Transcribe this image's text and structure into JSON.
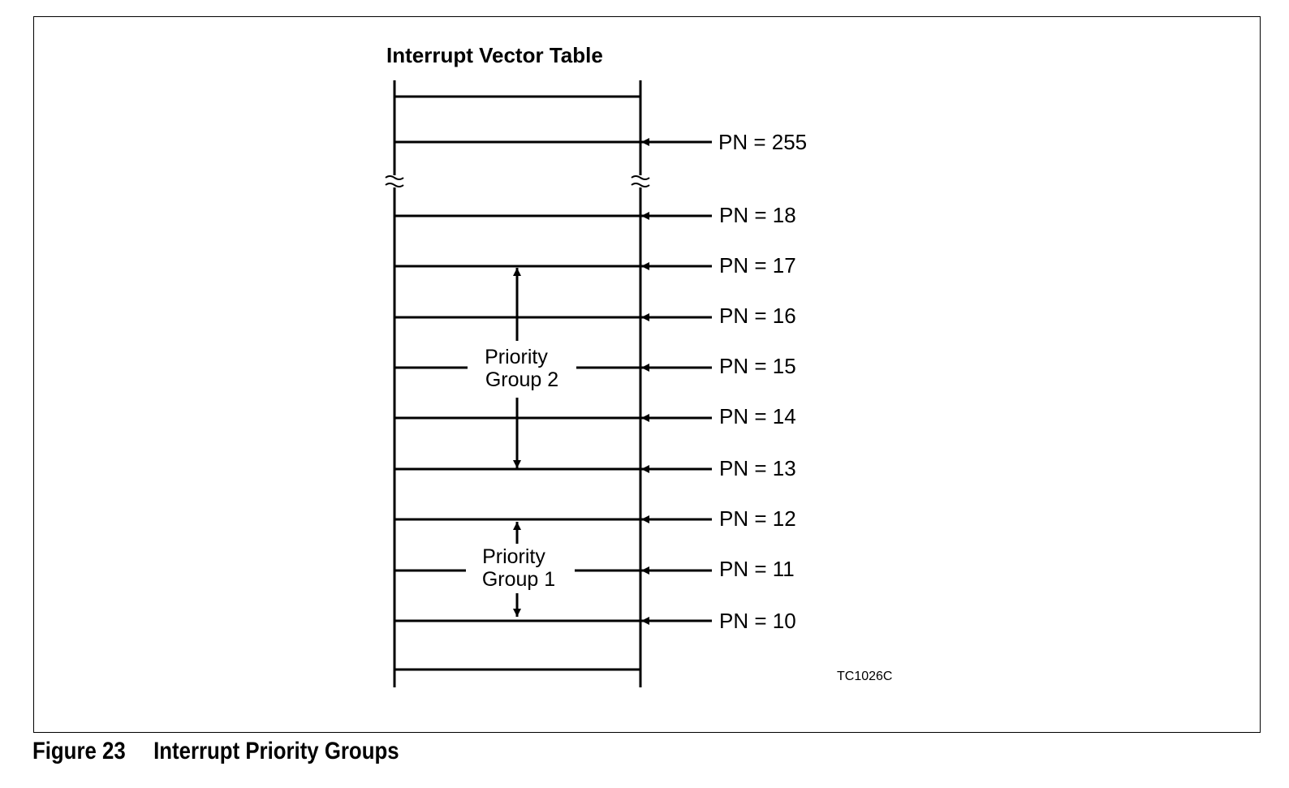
{
  "diagram": {
    "title": "Interrupt Vector Table",
    "code": "TC1026C",
    "rows": [
      {
        "pn": "PN = 255"
      },
      {
        "pn": "PN = 18"
      },
      {
        "pn": "PN = 17"
      },
      {
        "pn": "PN = 16"
      },
      {
        "pn": "PN = 15"
      },
      {
        "pn": "PN = 14"
      },
      {
        "pn": "PN = 13"
      },
      {
        "pn": "PN = 12"
      },
      {
        "pn": "PN = 11"
      },
      {
        "pn": "PN = 10"
      }
    ],
    "groups": [
      {
        "line1": "Priority",
        "line2": "Group 2"
      },
      {
        "line1": "Priority",
        "line2": "Group 1"
      }
    ]
  },
  "caption": {
    "number": "Figure 23",
    "title": "Interrupt Priority Groups"
  },
  "colors": {
    "stroke": "#000000",
    "background": "#ffffff"
  }
}
